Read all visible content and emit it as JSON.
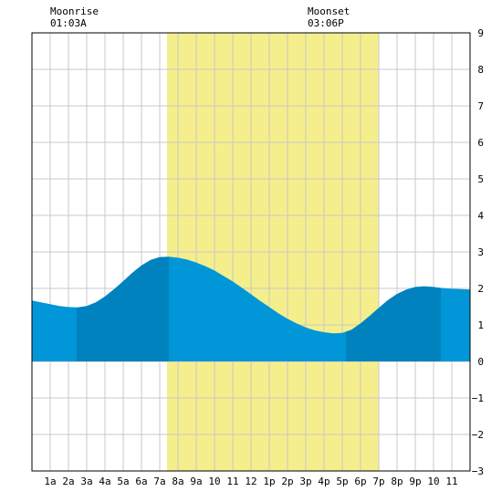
{
  "header": {
    "moonrise_label": "Moonrise",
    "moonrise_time": "01:03A",
    "moonset_label": "Moonset",
    "moonset_time": "03:06P"
  },
  "chart_data": {
    "type": "area",
    "title": "",
    "xlabel": "",
    "ylabel": "",
    "xlim": [
      0,
      24
    ],
    "ylim": [
      -3,
      9
    ],
    "x_unit": "hour of day",
    "x_tick_values": [
      1,
      2,
      3,
      4,
      5,
      6,
      7,
      8,
      9,
      10,
      11,
      12,
      13,
      14,
      15,
      16,
      17,
      18,
      19,
      20,
      21,
      22,
      23
    ],
    "x_tick_labels": [
      "1a",
      "2a",
      "3a",
      "4a",
      "5a",
      "6a",
      "7a",
      "8a",
      "9a",
      "10",
      "11",
      "12",
      "1p",
      "2p",
      "3p",
      "4p",
      "5p",
      "6p",
      "7p",
      "8p",
      "9p",
      "10",
      "11"
    ],
    "y_ticks": [
      -3,
      -2,
      -1,
      0,
      1,
      2,
      3,
      4,
      5,
      6,
      7,
      8,
      9
    ],
    "daylight_hours": [
      7.4,
      19.0
    ],
    "night_shading_breaks": [
      2.45,
      7.5,
      17.2,
      22.4
    ],
    "series": [
      {
        "x": [
          0.0,
          0.5,
          1.0,
          1.5,
          2.0,
          2.5,
          3.0,
          3.5,
          4.0,
          4.5,
          5.0,
          5.5,
          6.0,
          6.5,
          7.0,
          7.5,
          8.0,
          8.5,
          9.0,
          9.5,
          10.0,
          10.5,
          11.0,
          11.5,
          12.0,
          12.5,
          13.0,
          13.5,
          14.0,
          14.5,
          15.0,
          15.5,
          16.0,
          16.5,
          17.0,
          17.5,
          18.0,
          18.5,
          19.0,
          19.5,
          20.0,
          20.5,
          21.0,
          21.5,
          22.0,
          22.5,
          23.0,
          23.5,
          24.0
        ],
        "values": [
          1.67,
          1.62,
          1.57,
          1.52,
          1.49,
          1.48,
          1.52,
          1.62,
          1.78,
          1.98,
          2.2,
          2.43,
          2.63,
          2.78,
          2.86,
          2.87,
          2.84,
          2.79,
          2.71,
          2.61,
          2.49,
          2.34,
          2.19,
          2.02,
          1.84,
          1.66,
          1.49,
          1.32,
          1.17,
          1.04,
          0.93,
          0.85,
          0.8,
          0.77,
          0.78,
          0.87,
          1.04,
          1.25,
          1.47,
          1.68,
          1.85,
          1.97,
          2.04,
          2.06,
          2.04,
          2.01,
          1.99,
          1.98,
          1.97
        ]
      }
    ],
    "colors": {
      "tide_fill": "#0096d7",
      "tide_night_fill": "#0082bf",
      "daylight": "#f5ee8c",
      "grid": "#c8c8c8",
      "border": "#000000"
    },
    "grid": true
  }
}
